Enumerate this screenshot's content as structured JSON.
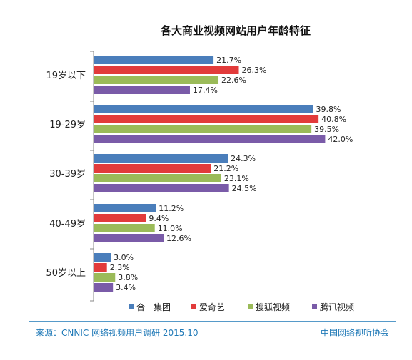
{
  "chart_data": {
    "type": "bar",
    "orientation": "horizontal",
    "title": "各大商业视频网站用户年龄特征",
    "categories": [
      "19岁以下",
      "19-29岁",
      "30-39岁",
      "40-49岁",
      "50岁以上"
    ],
    "series": [
      {
        "name": "合一集团",
        "color": "#4a7ebb",
        "values": [
          21.7,
          39.8,
          24.3,
          11.2,
          3.0
        ],
        "labels": [
          "21.7%",
          "39.8%",
          "24.3%",
          "11.2%",
          "3.0%"
        ]
      },
      {
        "name": "爱奇艺",
        "color": "#e23b3b",
        "values": [
          26.3,
          40.8,
          21.2,
          9.4,
          2.3
        ],
        "labels": [
          "26.3%",
          "40.8%",
          "21.2%",
          "9.4%",
          "2.3%"
        ]
      },
      {
        "name": "搜狐视频",
        "color": "#9bbb59",
        "values": [
          22.6,
          39.5,
          23.1,
          11.0,
          3.8
        ],
        "labels": [
          "22.6%",
          "39.5%",
          "23.1%",
          "11.0%",
          "3.8%"
        ]
      },
      {
        "name": "腾讯视频",
        "color": "#7a5ba8",
        "values": [
          17.4,
          42.0,
          24.5,
          12.6,
          3.4
        ],
        "labels": [
          "17.4%",
          "42.0%",
          "24.5%",
          "12.6%",
          "3.4%"
        ]
      }
    ],
    "xlim": [
      0,
      50
    ],
    "legend": "bottom",
    "grid": false
  },
  "footer": {
    "source": "来源：CNNIC 网络视频用户调研   2015.10",
    "org": "中国网络视听协会"
  },
  "colors": {
    "footer_text": "#1f79b7",
    "footer_line": "#1f79b7"
  }
}
